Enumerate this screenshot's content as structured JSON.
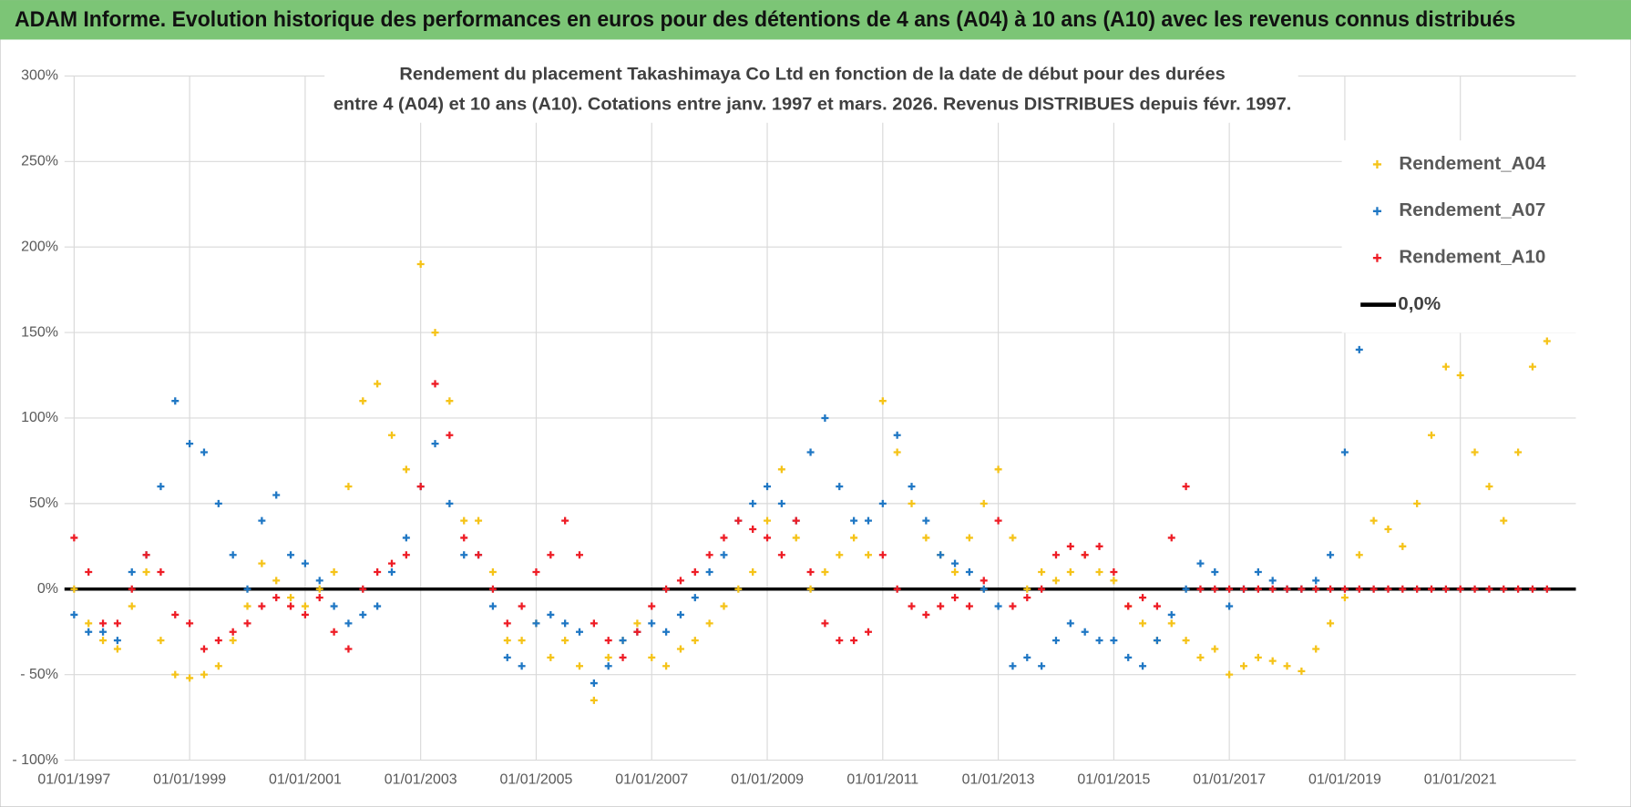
{
  "chart_data": {
    "type": "scatter",
    "header": "ADAM Informe. Evolution historique des performances en euros pour des détentions de 4 ans (A04) à 10 ans (A10) avec les revenus connus distribués",
    "title": "Rendement du placement Takashimaya Co Ltd en fonction de la date de début pour des durées",
    "subtitle": "entre 4 (A04) et 10 ans (A10).  Cotations entre janv. 1997 et mars. 2026. Revenus DISTRIBUES depuis févr. 1997.",
    "xlim": [
      "01/11/1996",
      "01/01/2023"
    ],
    "xticks": [
      "01/01/1997",
      "01/01/1999",
      "01/01/2001",
      "01/01/2003",
      "01/01/2005",
      "01/01/2007",
      "01/01/2009",
      "01/01/2011",
      "01/01/2013",
      "01/01/2015",
      "01/01/2017",
      "01/01/2019",
      "01/01/2021"
    ],
    "ylim": [
      -100,
      300
    ],
    "yticks": [
      {
        "value": -100,
        "label": "- 100%"
      },
      {
        "value": -50,
        "label": "- 50%"
      },
      {
        "value": 0,
        "label": "0%"
      },
      {
        "value": 50,
        "label": "50%"
      },
      {
        "value": 100,
        "label": "100%"
      },
      {
        "value": 150,
        "label": "150%"
      },
      {
        "value": 200,
        "label": "200%"
      },
      {
        "value": 250,
        "label": "250%"
      },
      {
        "value": 300,
        "label": "300%"
      }
    ],
    "grid": true,
    "legend": "top-right",
    "x": [
      "01/01/1997",
      "01/04/1997",
      "01/07/1997",
      "01/10/1997",
      "01/01/1998",
      "01/04/1998",
      "01/07/1998",
      "01/10/1998",
      "01/01/1999",
      "01/04/1999",
      "01/07/1999",
      "01/10/1999",
      "01/01/2000",
      "01/04/2000",
      "01/07/2000",
      "01/10/2000",
      "01/01/2001",
      "01/04/2001",
      "01/07/2001",
      "01/10/2001",
      "01/01/2002",
      "01/04/2002",
      "01/07/2002",
      "01/10/2002",
      "01/01/2003",
      "01/04/2003",
      "01/07/2003",
      "01/10/2003",
      "01/01/2004",
      "01/04/2004",
      "01/07/2004",
      "01/10/2004",
      "01/01/2005",
      "01/04/2005",
      "01/07/2005",
      "01/10/2005",
      "01/01/2006",
      "01/04/2006",
      "01/07/2006",
      "01/10/2006",
      "01/01/2007",
      "01/04/2007",
      "01/07/2007",
      "01/10/2007",
      "01/01/2008",
      "01/04/2008",
      "01/07/2008",
      "01/10/2008",
      "01/01/2009",
      "01/04/2009",
      "01/07/2009",
      "01/10/2009",
      "01/01/2010",
      "01/04/2010",
      "01/07/2010",
      "01/10/2010",
      "01/01/2011",
      "01/04/2011",
      "01/07/2011",
      "01/10/2011",
      "01/01/2012",
      "01/04/2012",
      "01/07/2012",
      "01/10/2012",
      "01/01/2013",
      "01/04/2013",
      "01/07/2013",
      "01/10/2013",
      "01/01/2014",
      "01/04/2014",
      "01/07/2014",
      "01/10/2014",
      "01/01/2015",
      "01/04/2015",
      "01/07/2015",
      "01/10/2015",
      "01/01/2016",
      "01/04/2016",
      "01/07/2016",
      "01/10/2016",
      "01/01/2017",
      "01/04/2017",
      "01/07/2017",
      "01/10/2017",
      "01/01/2018",
      "01/04/2018",
      "01/07/2018",
      "01/10/2018",
      "01/01/2019",
      "01/04/2019",
      "01/07/2019",
      "01/10/2019",
      "01/01/2020",
      "01/04/2020",
      "01/07/2020",
      "01/10/2020",
      "01/01/2021",
      "01/04/2021",
      "01/07/2021",
      "01/10/2021",
      "01/01/2022",
      "01/04/2022",
      "01/07/2022"
    ],
    "series": [
      {
        "name": "Rendement_A04",
        "color": "#f5c318",
        "values": [
          0,
          -20,
          -30,
          -35,
          -10,
          10,
          -30,
          -50,
          -52,
          -50,
          -45,
          -30,
          -10,
          15,
          5,
          -5,
          -10,
          0,
          10,
          60,
          110,
          120,
          90,
          70,
          190,
          150,
          110,
          40,
          40,
          10,
          -30,
          -30,
          -20,
          -40,
          -30,
          -45,
          -65,
          -40,
          -30,
          -20,
          -40,
          -45,
          -35,
          -30,
          -20,
          -10,
          0,
          10,
          40,
          70,
          30,
          0,
          10,
          20,
          30,
          20,
          110,
          80,
          50,
          30,
          20,
          10,
          30,
          50,
          70,
          30,
          0,
          10,
          5,
          10,
          20,
          10,
          5,
          -10,
          -20,
          -30,
          -20,
          -30,
          -40,
          -35,
          -50,
          -45,
          -40,
          -42,
          -45,
          -48,
          -35,
          -20,
          -5,
          20,
          40,
          35,
          25,
          50,
          90,
          130,
          125,
          80,
          60,
          40,
          80,
          130,
          145
        ]
      },
      {
        "name": "Rendement_A07",
        "color": "#1f77c4",
        "values": [
          -15,
          -25,
          -25,
          -30,
          10,
          20,
          60,
          110,
          85,
          80,
          50,
          20,
          0,
          40,
          55,
          20,
          15,
          5,
          -10,
          -20,
          -15,
          -10,
          10,
          30,
          60,
          85,
          50,
          20,
          20,
          -10,
          -40,
          -45,
          -20,
          -15,
          -20,
          -25,
          -55,
          -45,
          -30,
          -25,
          -20,
          -25,
          -15,
          -5,
          10,
          20,
          40,
          50,
          60,
          50,
          40,
          80,
          100,
          60,
          40,
          40,
          50,
          90,
          60,
          40,
          20,
          15,
          10,
          0,
          -10,
          -45,
          -40,
          -45,
          -30,
          -20,
          -25,
          -30,
          -30,
          -40,
          -45,
          -30,
          -15,
          0,
          15,
          10,
          -10,
          0,
          10,
          5,
          0,
          0,
          5,
          20,
          80,
          140,
          null,
          null,
          null,
          null,
          null,
          null,
          null,
          null,
          null,
          null,
          null,
          null,
          null
        ]
      },
      {
        "name": "Rendement_A10",
        "color": "#ee1c25",
        "values": [
          30,
          10,
          -20,
          -20,
          0,
          20,
          10,
          -15,
          -20,
          -35,
          -30,
          -25,
          -20,
          -10,
          -5,
          -10,
          -15,
          -5,
          -25,
          -35,
          0,
          10,
          15,
          20,
          60,
          120,
          90,
          30,
          20,
          0,
          -20,
          -10,
          10,
          20,
          40,
          20,
          -20,
          -30,
          -40,
          -25,
          -10,
          0,
          5,
          10,
          20,
          30,
          40,
          35,
          30,
          20,
          40,
          10,
          -20,
          -30,
          -30,
          -25,
          20,
          0,
          -10,
          -15,
          -10,
          -5,
          -10,
          5,
          40,
          -10,
          -5,
          0,
          20,
          25,
          20,
          25,
          10,
          -10,
          -5,
          -10,
          30,
          60,
          0,
          0,
          0,
          0,
          0,
          0,
          0,
          0,
          0,
          0,
          0,
          0,
          0,
          0,
          0,
          0,
          0,
          0,
          0,
          0,
          0,
          0,
          0,
          0,
          0
        ]
      }
    ],
    "zero_line": {
      "name": "0,0%",
      "color": "#000000",
      "value": 0
    }
  }
}
